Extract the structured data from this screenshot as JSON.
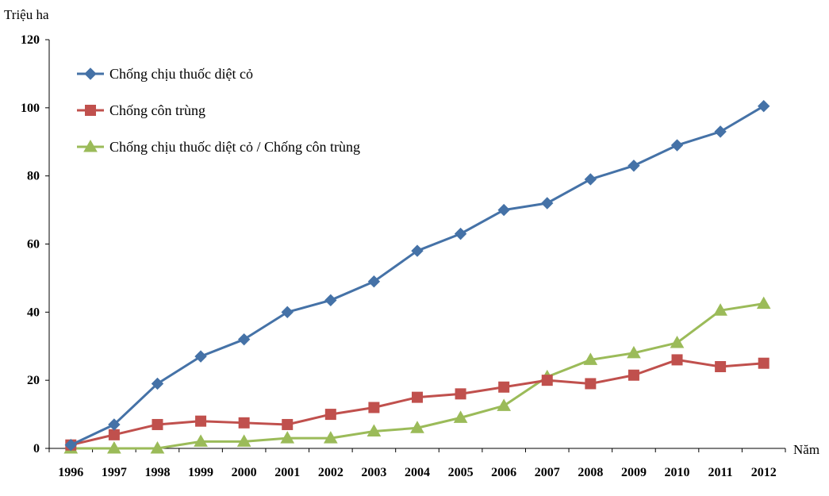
{
  "chart_data": {
    "type": "line",
    "title": "",
    "ylabel": "Triệu ha",
    "xlabel": "Năm",
    "ylim": [
      0,
      120
    ],
    "yticks": [
      "0",
      "20",
      "40",
      "60",
      "80",
      "100",
      "120"
    ],
    "categories": [
      "1996",
      "1997",
      "1998",
      "1999",
      "2000",
      "2001",
      "2002",
      "2003",
      "2004",
      "2005",
      "2006",
      "2007",
      "2008",
      "2009",
      "2010",
      "2011",
      "2012"
    ],
    "grid": false,
    "legend_position": "top-left",
    "series": [
      {
        "name": "Chống chịu thuốc diệt cỏ",
        "color": "#4572a7",
        "marker": "diamond",
        "values": [
          1,
          7,
          19,
          27,
          32,
          40,
          43.5,
          49,
          58,
          63,
          70,
          72,
          79,
          83,
          89,
          93,
          100.5
        ]
      },
      {
        "name": "Chống côn trùng",
        "color": "#c0504d",
        "marker": "square",
        "values": [
          1,
          4,
          7,
          8,
          7.5,
          7,
          10,
          12,
          15,
          16,
          18,
          20,
          19,
          21.5,
          26,
          24,
          25
        ]
      },
      {
        "name": "Chống chịu thuốc diệt cỏ / Chống côn trùng",
        "color": "#9bbb59",
        "marker": "triangle",
        "values": [
          0,
          0,
          0,
          2,
          2,
          3,
          3,
          5,
          6,
          9,
          12.5,
          21,
          26,
          28,
          31,
          40.5,
          42.5
        ]
      }
    ]
  }
}
